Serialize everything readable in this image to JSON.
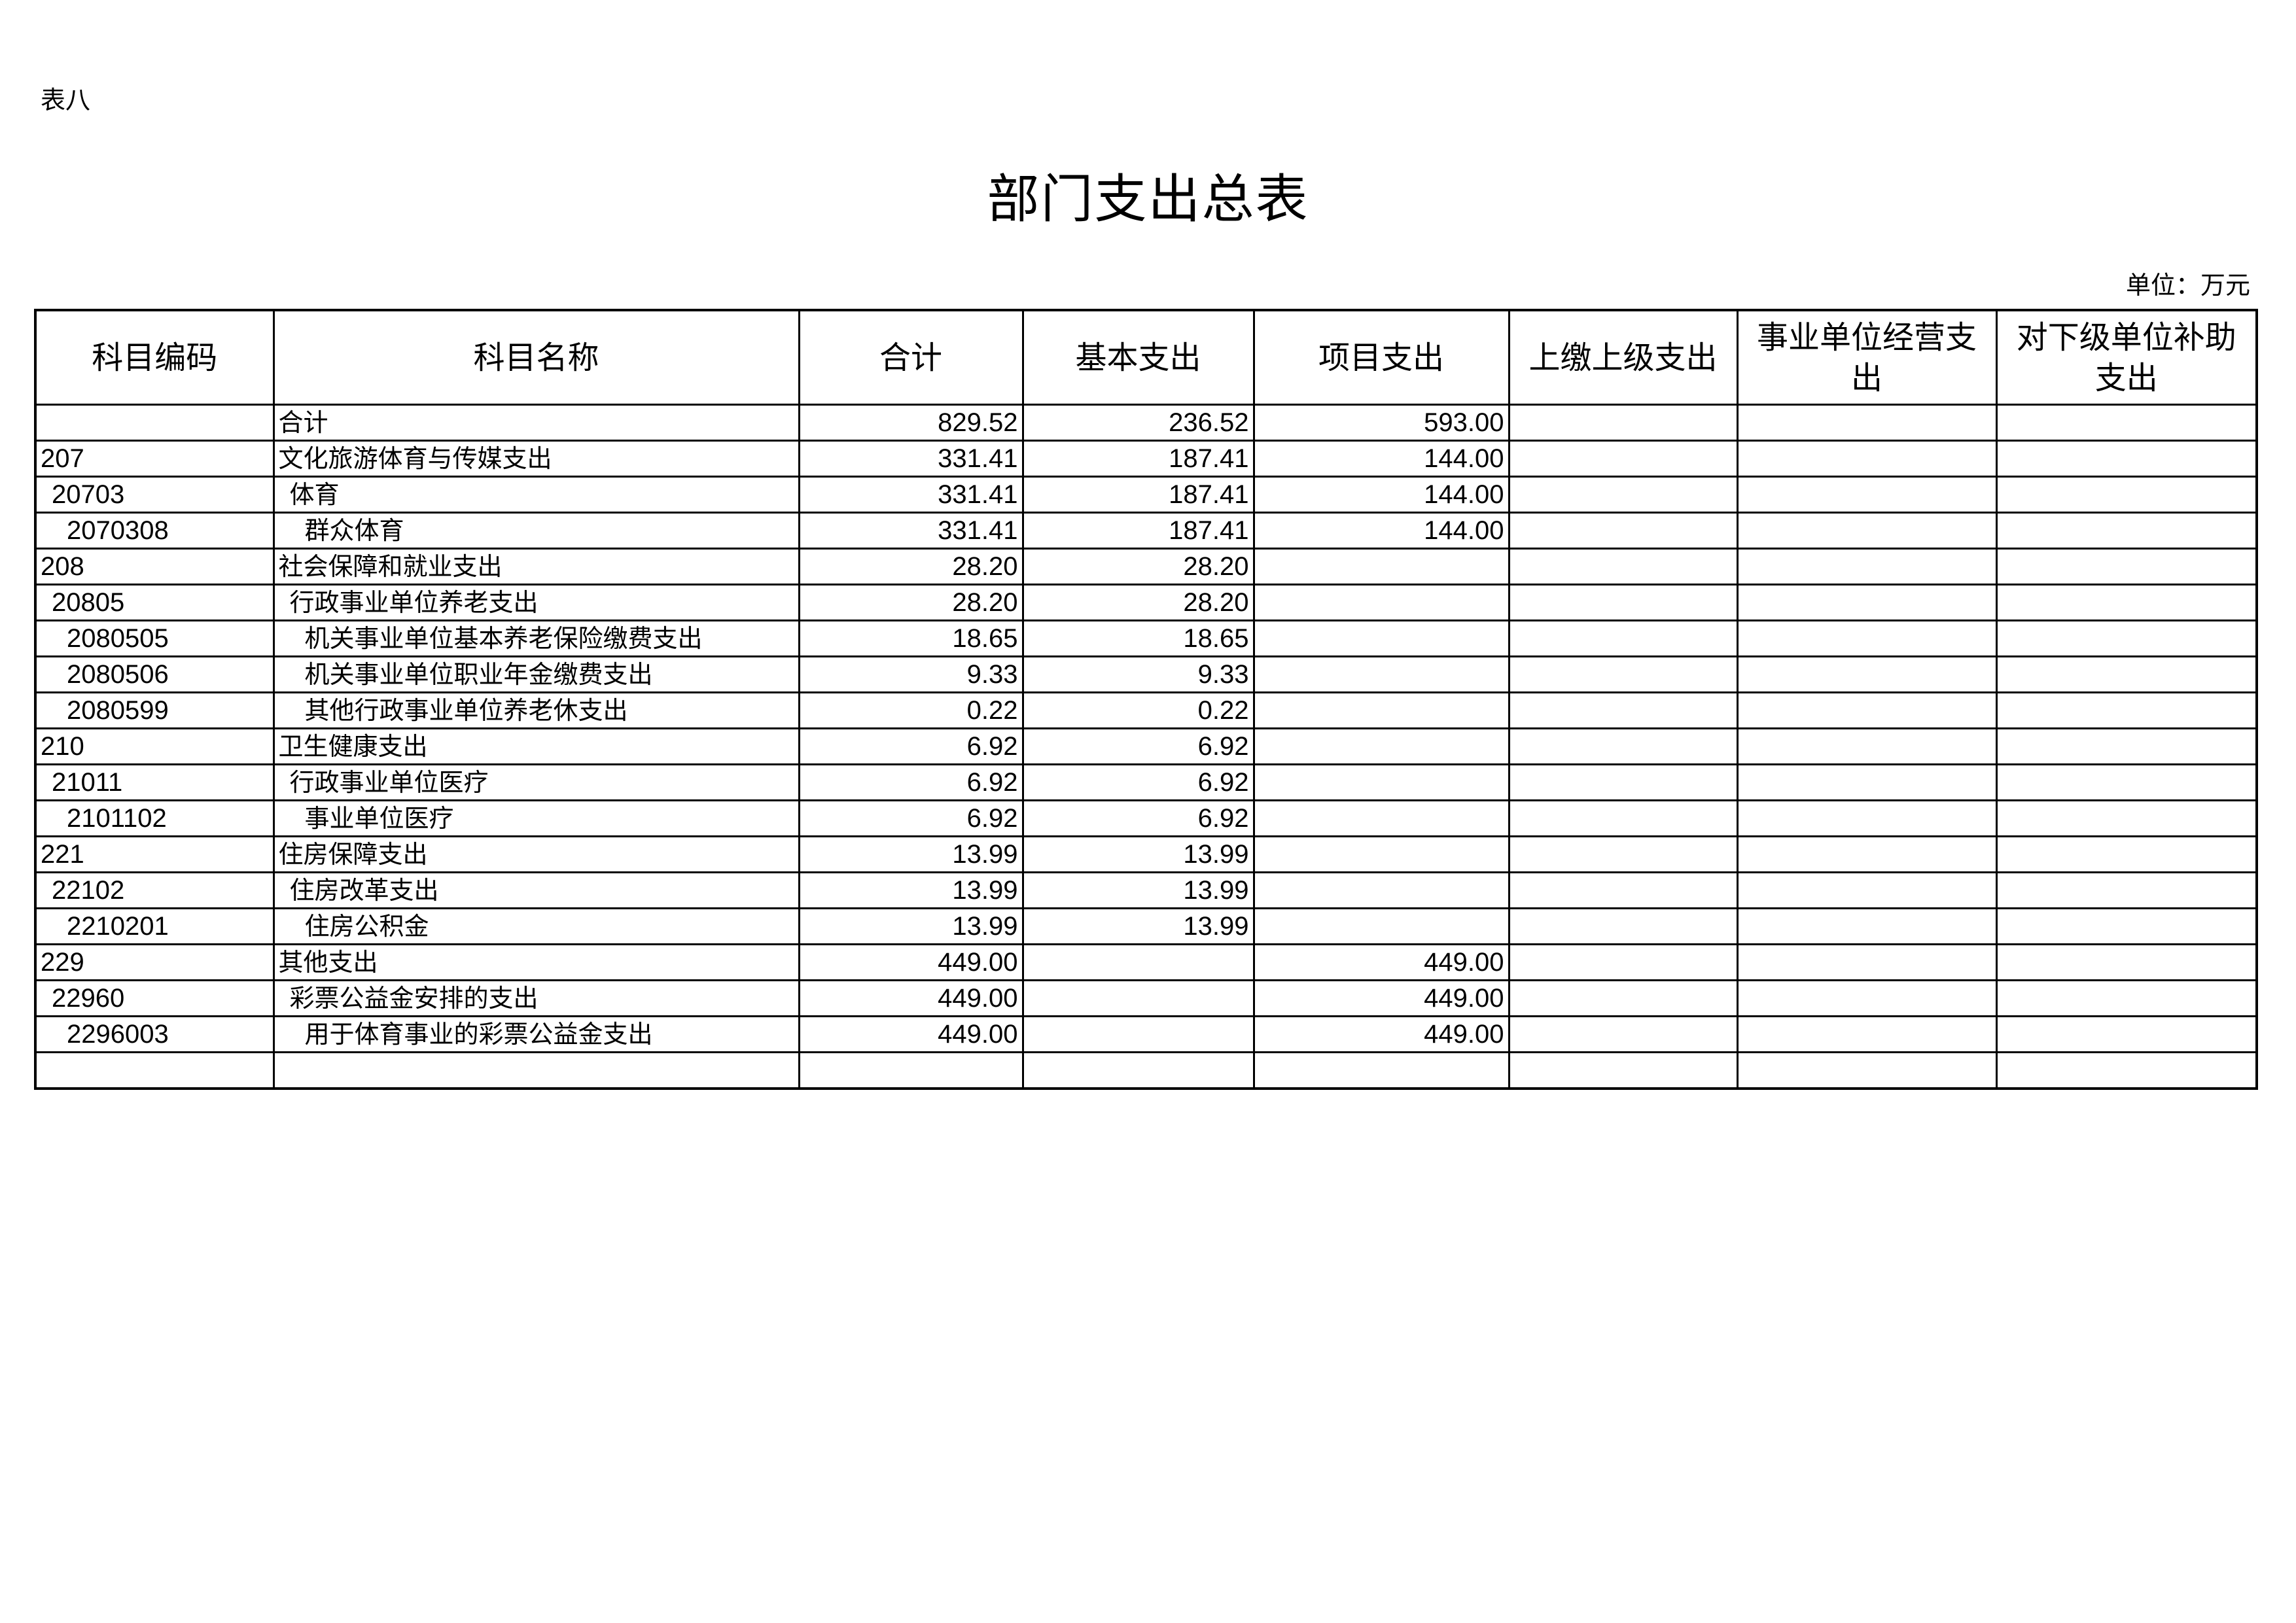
{
  "doc": {
    "tag": "表八",
    "title": "部门支出总表",
    "unit": "单位：万元"
  },
  "headers": [
    "科目编码",
    "科目名称",
    "合计",
    "基本支出",
    "项目支出",
    "上缴上级支出",
    "事业单位经营支出",
    "对下级单位补助支出"
  ],
  "rows": [
    {
      "level": 1,
      "code": "",
      "name": "合计",
      "total": "829.52",
      "basic": "236.52",
      "project": "593.00",
      "upper": "",
      "business": "",
      "subsidy": ""
    },
    {
      "level": 1,
      "code": "207",
      "name": "文化旅游体育与传媒支出",
      "total": "331.41",
      "basic": "187.41",
      "project": "144.00",
      "upper": "",
      "business": "",
      "subsidy": ""
    },
    {
      "level": 2,
      "code": "20703",
      "name": "体育",
      "total": "331.41",
      "basic": "187.41",
      "project": "144.00",
      "upper": "",
      "business": "",
      "subsidy": ""
    },
    {
      "level": 3,
      "code": "2070308",
      "name": "群众体育",
      "total": "331.41",
      "basic": "187.41",
      "project": "144.00",
      "upper": "",
      "business": "",
      "subsidy": ""
    },
    {
      "level": 1,
      "code": "208",
      "name": "社会保障和就业支出",
      "total": "28.20",
      "basic": "28.20",
      "project": "",
      "upper": "",
      "business": "",
      "subsidy": ""
    },
    {
      "level": 2,
      "code": "20805",
      "name": "行政事业单位养老支出",
      "total": "28.20",
      "basic": "28.20",
      "project": "",
      "upper": "",
      "business": "",
      "subsidy": ""
    },
    {
      "level": 3,
      "code": "2080505",
      "name": "机关事业单位基本养老保险缴费支出",
      "total": "18.65",
      "basic": "18.65",
      "project": "",
      "upper": "",
      "business": "",
      "subsidy": ""
    },
    {
      "level": 3,
      "code": "2080506",
      "name": "机关事业单位职业年金缴费支出",
      "total": "9.33",
      "basic": "9.33",
      "project": "",
      "upper": "",
      "business": "",
      "subsidy": ""
    },
    {
      "level": 3,
      "code": "2080599",
      "name": "其他行政事业单位养老休支出",
      "total": "0.22",
      "basic": "0.22",
      "project": "",
      "upper": "",
      "business": "",
      "subsidy": ""
    },
    {
      "level": 1,
      "code": "210",
      "name": "卫生健康支出",
      "total": "6.92",
      "basic": "6.92",
      "project": "",
      "upper": "",
      "business": "",
      "subsidy": ""
    },
    {
      "level": 2,
      "code": "21011",
      "name": "行政事业单位医疗",
      "total": "6.92",
      "basic": "6.92",
      "project": "",
      "upper": "",
      "business": "",
      "subsidy": ""
    },
    {
      "level": 3,
      "code": "2101102",
      "name": "事业单位医疗",
      "total": "6.92",
      "basic": "6.92",
      "project": "",
      "upper": "",
      "business": "",
      "subsidy": ""
    },
    {
      "level": 1,
      "code": "221",
      "name": "住房保障支出",
      "total": "13.99",
      "basic": "13.99",
      "project": "",
      "upper": "",
      "business": "",
      "subsidy": ""
    },
    {
      "level": 2,
      "code": "22102",
      "name": "住房改革支出",
      "total": "13.99",
      "basic": "13.99",
      "project": "",
      "upper": "",
      "business": "",
      "subsidy": ""
    },
    {
      "level": 3,
      "code": "2210201",
      "name": "住房公积金",
      "total": "13.99",
      "basic": "13.99",
      "project": "",
      "upper": "",
      "business": "",
      "subsidy": ""
    },
    {
      "level": 1,
      "code": "229",
      "name": "其他支出",
      "total": "449.00",
      "basic": "",
      "project": "449.00",
      "upper": "",
      "business": "",
      "subsidy": ""
    },
    {
      "level": 2,
      "code": "22960",
      "name": "彩票公益金安排的支出",
      "total": "449.00",
      "basic": "",
      "project": "449.00",
      "upper": "",
      "business": "",
      "subsidy": ""
    },
    {
      "level": 3,
      "code": "2296003",
      "name": "用于体育事业的彩票公益金支出",
      "total": "449.00",
      "basic": "",
      "project": "449.00",
      "upper": "",
      "business": "",
      "subsidy": ""
    },
    {
      "level": 1,
      "code": "",
      "name": "",
      "total": "",
      "basic": "",
      "project": "",
      "upper": "",
      "business": "",
      "subsidy": ""
    }
  ]
}
